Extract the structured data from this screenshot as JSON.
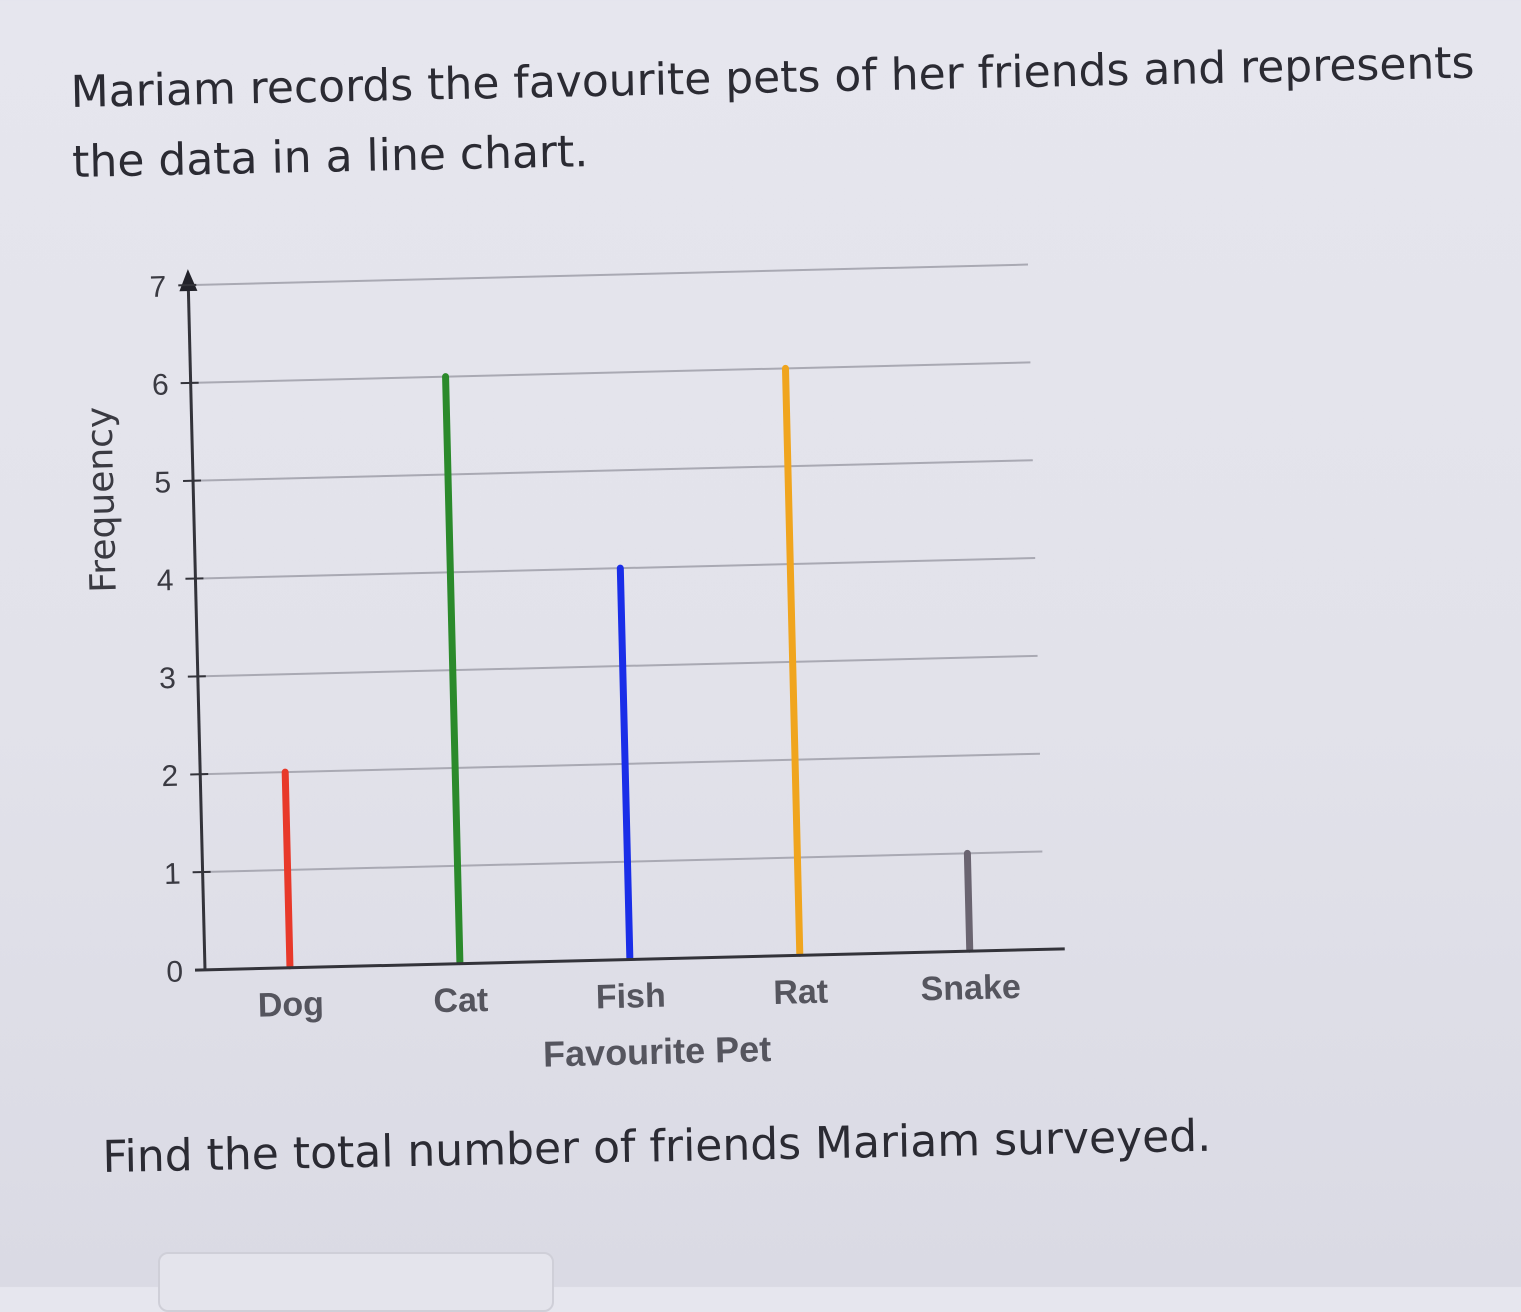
{
  "question": {
    "intro": "Mariam records the favourite pets of her friends and represents the data in a line chart.",
    "prompt": "Find the total number of friends Mariam surveyed."
  },
  "answer": {
    "value": ""
  },
  "chart_data": {
    "type": "bar",
    "categories": [
      "Dog",
      "Cat",
      "Fish",
      "Rat",
      "Snake"
    ],
    "values": [
      2,
      6,
      4,
      6,
      1
    ],
    "colors": [
      "#e8392a",
      "#2b8a2b",
      "#1a2ee8",
      "#f0a51e",
      "#6a6470"
    ],
    "xlabel": "Favourite Pet",
    "ylabel": "Frequency",
    "ylim": [
      0,
      7
    ],
    "yticks": [
      0,
      1,
      2,
      3,
      4,
      5,
      6,
      7
    ],
    "grid": true
  }
}
